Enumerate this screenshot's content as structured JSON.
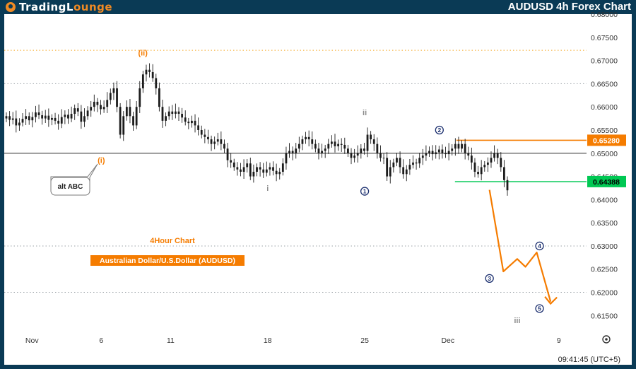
{
  "header": {
    "brand_part1": "TradingL",
    "brand_part2": "ounge",
    "title": "AUDUSD 4h Forex Chart"
  },
  "labels": {
    "timeframe": "4Hour Chart",
    "instrument": "Australian Dollar/U.S.Dollar (AUDUSD)",
    "alt_callout": "alt ABC",
    "clock": "09:41:45 (UTC+5)"
  },
  "colors": {
    "background": "#ffffff",
    "frame": "#0a3a55",
    "orange": "#f57c00",
    "green": "#00c853",
    "navy": "#1a2e6e",
    "gray_wave": "#8c8c8c",
    "candle": "#1c1c1c"
  },
  "chart_data": {
    "type": "candlestick",
    "price_axis": {
      "min": 0.612,
      "max": 0.68,
      "tick_labels": [
        "0.68000",
        "0.67500",
        "0.67000",
        "0.66500",
        "0.66000",
        "0.65500",
        "0.65000",
        "0.64500",
        "0.64000",
        "0.63500",
        "0.63000",
        "0.62500",
        "0.62000",
        "0.61500"
      ],
      "ticks": [
        0.68,
        0.675,
        0.67,
        0.665,
        0.66,
        0.655,
        0.65,
        0.645,
        0.64,
        0.635,
        0.63,
        0.625,
        0.62,
        0.615
      ]
    },
    "time_axis": {
      "labels": [
        "Nov",
        "6",
        "11",
        "18",
        "25",
        "Dec",
        "9"
      ],
      "dates": [
        "2023-11-01",
        "2023-11-06",
        "2023-11-11",
        "2023-11-18",
        "2023-11-25",
        "2023-12-01",
        "2023-12-09"
      ],
      "start": "2023-10-30",
      "end": "2023-12-11"
    },
    "price_lines": [
      {
        "name": "resistance",
        "price": 0.6528,
        "label": "0.65280",
        "color": "#f57c00"
      },
      {
        "name": "support",
        "price": 0.64388,
        "label": "0.64388",
        "color": "#00c853"
      },
      {
        "name": "horizontal-level",
        "price": 0.65,
        "label": "",
        "color": "#555555"
      }
    ],
    "dotted_levels": [
      {
        "price": 0.6722,
        "color": "#f5a623"
      },
      {
        "price": 0.665,
        "color": "#9aa0a6"
      },
      {
        "price": 0.63,
        "color": "#9aa0a6"
      },
      {
        "price": 0.62,
        "color": "#9aa0a6"
      }
    ],
    "wave_labels": [
      {
        "text": "(ii)",
        "date": "2023-11-09",
        "price": 0.6717,
        "color": "#f57c00"
      },
      {
        "text": "(i)",
        "date": "2023-11-06",
        "price": 0.6485,
        "color": "#f57c00"
      },
      {
        "text": "i",
        "date": "2023-11-18",
        "price": 0.6425,
        "color": "#8c8c8c"
      },
      {
        "text": "ii",
        "date": "2023-11-25",
        "price": 0.6588,
        "color": "#8c8c8c"
      },
      {
        "text": "iii",
        "date": "2023-12-06",
        "price": 0.614,
        "color": "#8c8c8c"
      },
      {
        "text": "1",
        "date": "2023-11-25",
        "price": 0.6418,
        "color": "#1a2e6e",
        "circled": true
      },
      {
        "text": "2",
        "date": "2023-12-01",
        "price": 0.655,
        "color": "#1a2e6e",
        "circled": true
      },
      {
        "text": "3",
        "date": "2023-12-04",
        "price": 0.623,
        "color": "#1a2e6e",
        "circled": true
      },
      {
        "text": "4",
        "date": "2023-12-07",
        "price": 0.63,
        "color": "#1a2e6e",
        "circled": true
      },
      {
        "text": "5",
        "date": "2023-12-07",
        "price": 0.6165,
        "color": "#1a2e6e",
        "circled": true
      }
    ],
    "projection": {
      "color": "#f57c00",
      "points": [
        {
          "date": "2023-12-04",
          "price": 0.6421
        },
        {
          "date": "2023-12-05",
          "price": 0.6245
        },
        {
          "date": "2023-12-06",
          "price": 0.6272
        },
        {
          "date": "2023-12-07",
          "price": 0.6255
        },
        {
          "date": "2023-12-07",
          "price": 0.6286
        },
        {
          "date": "2023-12-08",
          "price": 0.618
        }
      ]
    },
    "series": [
      {
        "name": "AUDUSD",
        "closes": [
          0.658,
          0.6572,
          0.6575,
          0.656,
          0.6566,
          0.6574,
          0.658,
          0.6571,
          0.6578,
          0.6588,
          0.6582,
          0.6575,
          0.6581,
          0.6572,
          0.6576,
          0.657,
          0.6564,
          0.6578,
          0.6583,
          0.6575,
          0.6585,
          0.6597,
          0.659,
          0.6568,
          0.658,
          0.6592,
          0.66,
          0.6611,
          0.6604,
          0.6595,
          0.66,
          0.6615,
          0.663,
          0.664,
          0.66,
          0.654,
          0.658,
          0.66,
          0.658,
          0.656,
          0.66,
          0.664,
          0.667,
          0.668,
          0.6675,
          0.6662,
          0.664,
          0.66,
          0.657,
          0.658,
          0.659,
          0.6585,
          0.659,
          0.6585,
          0.6577,
          0.6568,
          0.6565,
          0.657,
          0.656,
          0.655,
          0.654,
          0.6535,
          0.653,
          0.652,
          0.6525,
          0.653,
          0.652,
          0.651,
          0.6485,
          0.648,
          0.647,
          0.6465,
          0.646,
          0.647,
          0.6478,
          0.645,
          0.646,
          0.647,
          0.6465,
          0.6458,
          0.6465,
          0.647,
          0.6462,
          0.6455,
          0.646,
          0.6478,
          0.65,
          0.6505,
          0.65,
          0.651,
          0.652,
          0.653,
          0.6535,
          0.653,
          0.652,
          0.651,
          0.65,
          0.6505,
          0.651,
          0.652,
          0.6525,
          0.6515,
          0.652,
          0.6518,
          0.651,
          0.65,
          0.649,
          0.6495,
          0.65,
          0.651,
          0.6505,
          0.654,
          0.653,
          0.652,
          0.65,
          0.649,
          0.649,
          0.645,
          0.647,
          0.648,
          0.649,
          0.647,
          0.6455,
          0.6465,
          0.6475,
          0.648,
          0.6478,
          0.649,
          0.6495,
          0.65,
          0.6505,
          0.6498,
          0.6502,
          0.6508,
          0.65,
          0.6498,
          0.6505,
          0.651,
          0.652,
          0.651,
          0.652,
          0.65,
          0.6495,
          0.648,
          0.646,
          0.6455,
          0.647,
          0.6475,
          0.648,
          0.649,
          0.65,
          0.649,
          0.647,
          0.6442,
          0.642
        ]
      }
    ]
  }
}
